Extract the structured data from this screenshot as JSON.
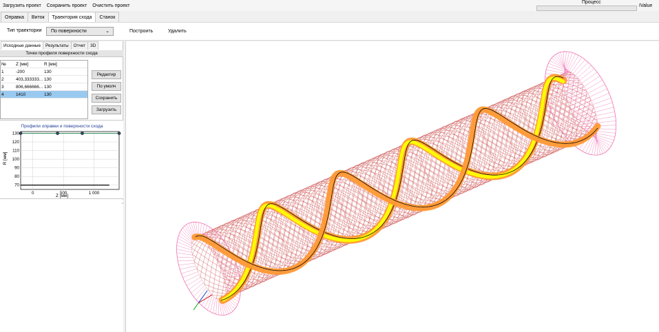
{
  "menu": [
    "Загрузить проект",
    "Сохранить проект",
    "Очистить проект"
  ],
  "process": {
    "label": "Процесс",
    "value_label": "IValue",
    "progress": 0
  },
  "main_tabs": [
    {
      "label": "Оправка",
      "active": false
    },
    {
      "label": "Виток",
      "active": false
    },
    {
      "label": "Траектория схода",
      "active": true
    },
    {
      "label": "Станок",
      "active": false
    }
  ],
  "toolbar": {
    "trajectory_type_label": "Тип траектории",
    "trajectory_type_value": "По поверхности",
    "build_label": "Построить",
    "delete_label": "Удалить"
  },
  "sub_tabs": [
    {
      "label": "Исходные данные",
      "active": true
    },
    {
      "label": "Результаты",
      "active": false
    },
    {
      "label": "Отчет",
      "active": false
    },
    {
      "label": "3D",
      "active": false
    }
  ],
  "points": {
    "title": "Точки профиля поверхности схода",
    "columns": [
      "№",
      "Z [мм]",
      "R [мм]"
    ],
    "rows": [
      [
        "1",
        "-200",
        "130"
      ],
      [
        "2",
        "403,333333...",
        "130"
      ],
      [
        "3",
        "806,666666...",
        "130"
      ],
      [
        "4",
        "1410",
        "130"
      ]
    ],
    "selected_row": 3
  },
  "side_buttons": [
    "Редактир",
    "По умолч",
    "Сохранить",
    "Загрузить"
  ],
  "chart_data": {
    "type": "line",
    "title": "Профили оправки и поверхности схода",
    "xlabel": "Z [мм]",
    "ylabel": "R [мм]",
    "xlim": [
      -200,
      1410
    ],
    "ylim": [
      65,
      132
    ],
    "x_ticks": [
      0,
      500,
      1000
    ],
    "x_tick_labels": [
      "0",
      "500",
      "1 000"
    ],
    "y_ticks": [
      70,
      80,
      90,
      100,
      110,
      120,
      130
    ],
    "y_tick_labels": [
      "70",
      "80",
      "90",
      "100",
      "110",
      "120",
      "130"
    ],
    "grid": true,
    "series": [
      {
        "color": "#2e8b57",
        "x": [
          -200,
          403.33,
          806.67,
          1410
        ],
        "y": [
          130,
          130,
          130,
          130
        ],
        "markers": true
      },
      {
        "color": "#000000",
        "x": [
          -200,
          1250
        ],
        "y": [
          70,
          70
        ],
        "markers": false
      }
    ]
  },
  "splitter_glyph": "◦",
  "viewport": {
    "colors": {
      "mesh": "#d46a6a",
      "flange": "#f06fb0",
      "band": "#ff9933",
      "fill": "#ffff00",
      "edge": "#000000"
    }
  }
}
